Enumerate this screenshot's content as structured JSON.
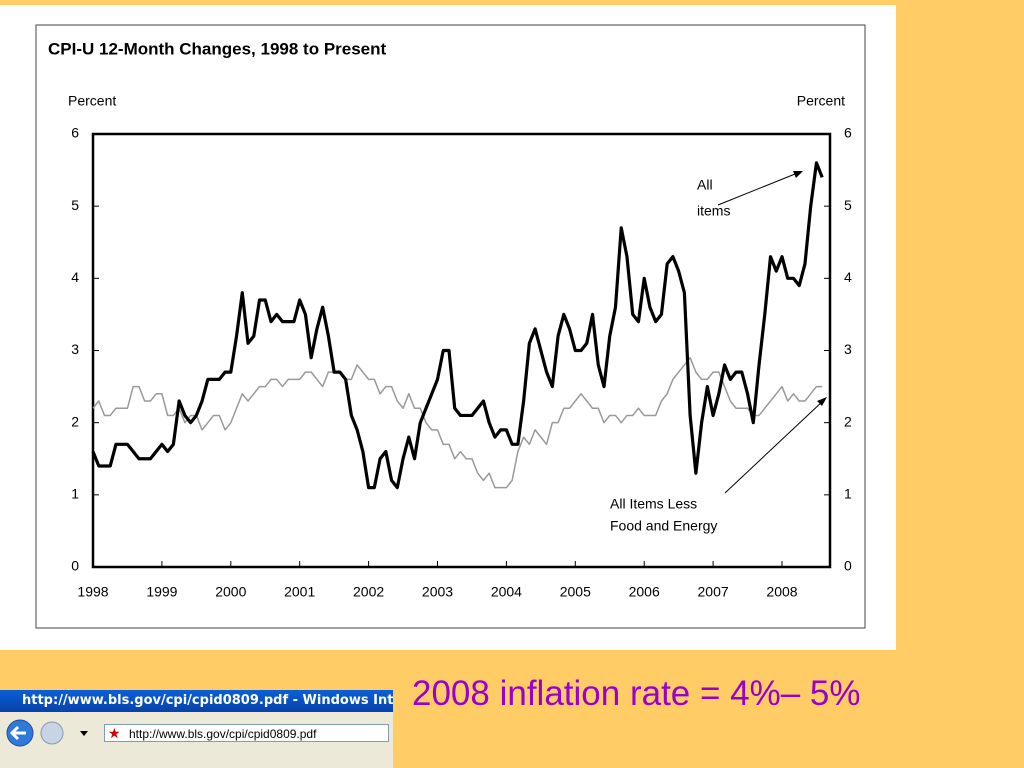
{
  "chart_data": {
    "type": "line",
    "title": "CPI-U 12-Month Changes, 1998 to Present",
    "ylabel": "Percent",
    "y2label": "Percent",
    "categories": [
      "1998",
      null,
      null,
      null,
      null,
      null,
      null,
      null,
      null,
      null,
      null,
      null,
      "1999",
      null,
      null,
      null,
      null,
      null,
      null,
      null,
      null,
      null,
      null,
      null,
      "2000",
      null,
      null,
      null,
      null,
      null,
      null,
      null,
      null,
      null,
      null,
      null,
      "2001",
      null,
      null,
      null,
      null,
      null,
      null,
      null,
      null,
      null,
      null,
      null,
      "2002",
      null,
      null,
      null,
      null,
      null,
      null,
      null,
      null,
      null,
      null,
      null,
      "2003",
      null,
      null,
      null,
      null,
      null,
      null,
      null,
      null,
      null,
      null,
      null,
      "2004",
      null,
      null,
      null,
      null,
      null,
      null,
      null,
      null,
      null,
      null,
      null,
      "2005",
      null,
      null,
      null,
      null,
      null,
      null,
      null,
      null,
      null,
      null,
      null,
      "2006",
      null,
      null,
      null,
      null,
      null,
      null,
      null,
      null,
      null,
      null,
      null,
      "2007",
      null,
      null,
      null,
      null,
      null,
      null,
      null,
      null,
      null,
      null,
      null,
      "2008",
      null,
      null,
      null,
      null,
      null,
      null,
      null
    ],
    "series": [
      {
        "name": "All items",
        "color": "#000000",
        "values": [
          1.6,
          1.4,
          1.4,
          1.4,
          1.7,
          1.7,
          1.7,
          1.6,
          1.5,
          1.5,
          1.5,
          1.6,
          1.7,
          1.6,
          1.7,
          2.3,
          2.1,
          2.0,
          2.1,
          2.3,
          2.6,
          2.6,
          2.6,
          2.7,
          2.7,
          3.2,
          3.8,
          3.1,
          3.2,
          3.7,
          3.7,
          3.4,
          3.5,
          3.4,
          3.4,
          3.4,
          3.7,
          3.5,
          2.9,
          3.3,
          3.6,
          3.2,
          2.7,
          2.7,
          2.6,
          2.1,
          1.9,
          1.6,
          1.1,
          1.1,
          1.5,
          1.6,
          1.2,
          1.1,
          1.5,
          1.8,
          1.5,
          2.0,
          2.2,
          2.4,
          2.6,
          3.0,
          3.0,
          2.2,
          2.1,
          2.1,
          2.1,
          2.2,
          2.3,
          2.0,
          1.8,
          1.9,
          1.9,
          1.7,
          1.7,
          2.3,
          3.1,
          3.3,
          3.0,
          2.7,
          2.5,
          3.2,
          3.5,
          3.3,
          3.0,
          3.0,
          3.1,
          3.5,
          2.8,
          2.5,
          3.2,
          3.6,
          4.7,
          4.3,
          3.5,
          3.4,
          4.0,
          3.6,
          3.4,
          3.5,
          4.2,
          4.3,
          4.1,
          3.8,
          2.1,
          1.3,
          2.0,
          2.5,
          2.1,
          2.4,
          2.8,
          2.6,
          2.7,
          2.7,
          2.4,
          2.0,
          2.8,
          3.5,
          4.3,
          4.1,
          4.3,
          4.0,
          4.0,
          3.9,
          4.2,
          5.0,
          5.6,
          5.4
        ]
      },
      {
        "name": "All Items Less Food and Energy",
        "color": "#999999",
        "values": [
          2.2,
          2.3,
          2.1,
          2.1,
          2.2,
          2.2,
          2.2,
          2.5,
          2.5,
          2.3,
          2.3,
          2.4,
          2.4,
          2.1,
          2.1,
          2.2,
          2.0,
          2.1,
          2.1,
          1.9,
          2.0,
          2.1,
          2.1,
          1.9,
          2.0,
          2.2,
          2.4,
          2.3,
          2.4,
          2.5,
          2.5,
          2.6,
          2.6,
          2.5,
          2.6,
          2.6,
          2.6,
          2.7,
          2.7,
          2.6,
          2.5,
          2.7,
          2.7,
          2.7,
          2.6,
          2.6,
          2.8,
          2.7,
          2.6,
          2.6,
          2.4,
          2.5,
          2.5,
          2.3,
          2.2,
          2.4,
          2.2,
          2.2,
          2.0,
          1.9,
          1.9,
          1.7,
          1.7,
          1.5,
          1.6,
          1.5,
          1.5,
          1.3,
          1.2,
          1.3,
          1.1,
          1.1,
          1.1,
          1.2,
          1.6,
          1.8,
          1.7,
          1.9,
          1.8,
          1.7,
          2.0,
          2.0,
          2.2,
          2.2,
          2.3,
          2.4,
          2.3,
          2.2,
          2.2,
          2.0,
          2.1,
          2.1,
          2.0,
          2.1,
          2.1,
          2.2,
          2.1,
          2.1,
          2.1,
          2.3,
          2.4,
          2.6,
          2.7,
          2.8,
          2.9,
          2.7,
          2.6,
          2.6,
          2.7,
          2.7,
          2.5,
          2.3,
          2.2,
          2.2,
          2.2,
          2.1,
          2.1,
          2.2,
          2.3,
          2.4,
          2.5,
          2.3,
          2.4,
          2.3,
          2.3,
          2.4,
          2.5,
          2.5
        ]
      }
    ],
    "annotations": [
      [
        "All",
        "items"
      ],
      [
        "All Items Less",
        "Food and Energy"
      ]
    ],
    "ylim": [
      0,
      6
    ],
    "yticks": [
      0,
      1,
      2,
      3,
      4,
      5,
      6
    ],
    "y2lim": [
      0,
      6
    ],
    "y2ticks": [
      0,
      1,
      2,
      3,
      4,
      5,
      6
    ],
    "grid": false
  },
  "caption": "2008 inflation rate = 4%– 5%",
  "browser": {
    "title": "http://www.bls.gov/cpi/cpid0809.pdf - Windows Int",
    "address": "http://www.bls.gov/cpi/cpid0809.pdf"
  }
}
